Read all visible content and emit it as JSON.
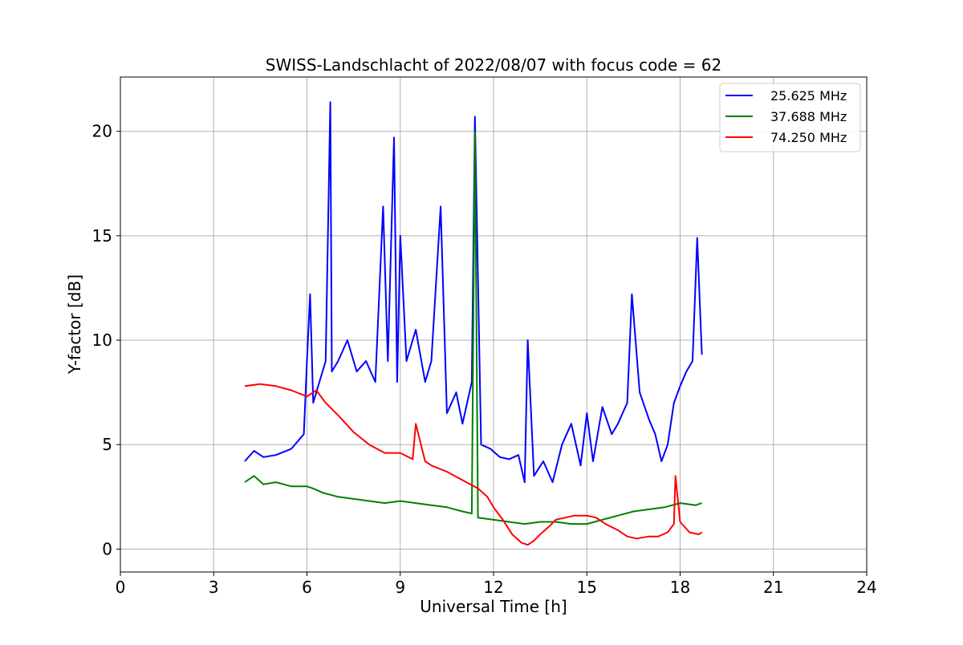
{
  "chart_data": {
    "type": "line",
    "title": "SWISS-Landschlacht of 2022/08/07 with focus code = 62",
    "xlabel": "Universal Time [h]",
    "ylabel": "Y-factor [dB]",
    "xlim": [
      0,
      24
    ],
    "ylim": [
      -1.1,
      22.6
    ],
    "x_ticks": [
      0,
      3,
      6,
      9,
      12,
      15,
      18,
      21,
      24
    ],
    "y_ticks": [
      0,
      5,
      10,
      15,
      20
    ],
    "grid": true,
    "legend_position": "top-right",
    "series": [
      {
        "name": "25.625 MHz",
        "color": "#0000ff",
        "x": [
          4.0,
          4.3,
          4.6,
          5.0,
          5.5,
          5.9,
          6.0,
          6.1,
          6.2,
          6.4,
          6.6,
          6.75,
          6.8,
          7.0,
          7.3,
          7.6,
          7.9,
          8.2,
          8.45,
          8.6,
          8.8,
          8.9,
          9.0,
          9.2,
          9.5,
          9.8,
          10.0,
          10.3,
          10.5,
          10.8,
          11.0,
          11.3,
          11.4,
          11.6,
          11.9,
          12.2,
          12.5,
          12.8,
          13.0,
          13.1,
          13.3,
          13.6,
          13.9,
          14.2,
          14.5,
          14.8,
          15.0,
          15.2,
          15.5,
          15.8,
          16.0,
          16.3,
          16.45,
          16.7,
          17.0,
          17.2,
          17.4,
          17.6,
          17.8,
          18.0,
          18.2,
          18.4,
          18.55,
          18.7
        ],
        "y": [
          4.2,
          4.7,
          4.4,
          4.5,
          4.8,
          5.5,
          9.0,
          12.2,
          7.0,
          8.0,
          9.0,
          21.4,
          8.5,
          9.0,
          10.0,
          8.5,
          9.0,
          8.0,
          16.4,
          9.0,
          19.7,
          8.0,
          15.0,
          9.0,
          10.5,
          8.0,
          9.0,
          16.4,
          6.5,
          7.5,
          6.0,
          8.0,
          20.7,
          5.0,
          4.8,
          4.4,
          4.3,
          4.5,
          3.2,
          10.0,
          3.5,
          4.2,
          3.2,
          5.0,
          6.0,
          4.0,
          6.5,
          4.2,
          6.8,
          5.5,
          6.0,
          7.0,
          12.2,
          7.5,
          6.2,
          5.5,
          4.2,
          5.0,
          7.0,
          7.8,
          8.5,
          9.0,
          14.9,
          9.3
        ]
      },
      {
        "name": "37.688 MHz",
        "color": "#008000",
        "x": [
          4.0,
          4.3,
          4.6,
          5.0,
          5.5,
          6.0,
          6.2,
          6.5,
          7.0,
          7.5,
          8.0,
          8.5,
          9.0,
          9.5,
          10.0,
          10.5,
          11.0,
          11.3,
          11.4,
          11.5,
          12.0,
          12.5,
          13.0,
          13.5,
          14.0,
          14.5,
          15.0,
          15.5,
          16.0,
          16.5,
          17.0,
          17.5,
          18.0,
          18.5,
          18.7
        ],
        "y": [
          3.2,
          3.5,
          3.1,
          3.2,
          3.0,
          3.0,
          2.9,
          2.7,
          2.5,
          2.4,
          2.3,
          2.2,
          2.3,
          2.2,
          2.1,
          2.0,
          1.8,
          1.7,
          20.0,
          1.5,
          1.4,
          1.3,
          1.2,
          1.3,
          1.3,
          1.2,
          1.2,
          1.4,
          1.6,
          1.8,
          1.9,
          2.0,
          2.2,
          2.1,
          2.2
        ]
      },
      {
        "name": "74.250 MHz",
        "color": "#ff0000",
        "x": [
          4.0,
          4.5,
          5.0,
          5.5,
          6.0,
          6.3,
          6.6,
          7.0,
          7.5,
          8.0,
          8.5,
          9.0,
          9.4,
          9.5,
          9.8,
          10.0,
          10.5,
          11.0,
          11.5,
          11.8,
          12.0,
          12.3,
          12.6,
          12.9,
          13.1,
          13.3,
          13.5,
          13.8,
          14.0,
          14.3,
          14.6,
          15.0,
          15.3,
          15.6,
          16.0,
          16.3,
          16.6,
          17.0,
          17.3,
          17.6,
          17.8,
          17.85,
          18.0,
          18.3,
          18.6,
          18.7
        ],
        "y": [
          7.8,
          7.9,
          7.8,
          7.6,
          7.3,
          7.6,
          7.0,
          6.4,
          5.6,
          5.0,
          4.6,
          4.6,
          4.3,
          6.0,
          4.2,
          4.0,
          3.7,
          3.3,
          2.9,
          2.5,
          2.0,
          1.4,
          0.7,
          0.3,
          0.2,
          0.4,
          0.7,
          1.1,
          1.4,
          1.5,
          1.6,
          1.6,
          1.5,
          1.2,
          0.9,
          0.6,
          0.5,
          0.6,
          0.6,
          0.8,
          1.2,
          3.5,
          1.3,
          0.8,
          0.7,
          0.8
        ]
      }
    ]
  }
}
